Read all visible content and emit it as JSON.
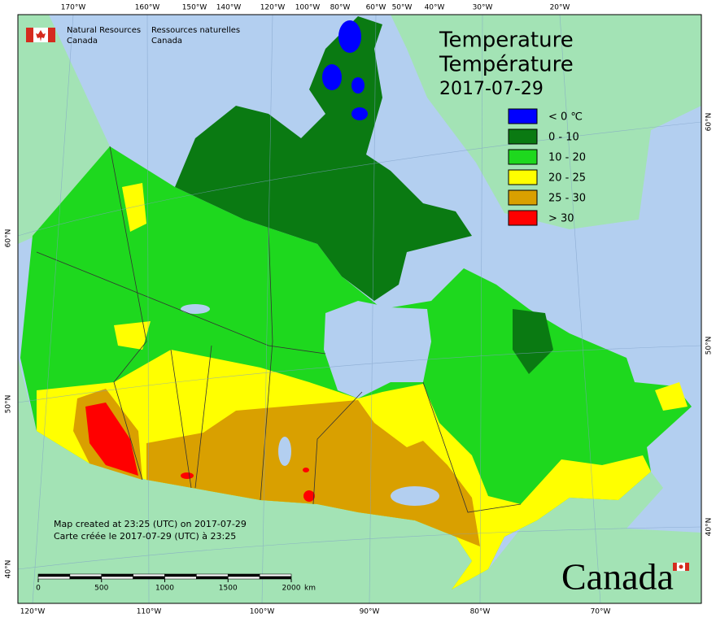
{
  "header": {
    "agency_en": [
      "Natural Resources",
      "Canada"
    ],
    "agency_fr": [
      "Ressources naturelles",
      "Canada"
    ]
  },
  "title": {
    "en": "Temperature",
    "fr": "Température",
    "date": "2017-07-29"
  },
  "legend": [
    {
      "label": "< 0 ℃",
      "color": "#0000ff"
    },
    {
      "label": "0 - 10",
      "color": "#0a7a12"
    },
    {
      "label": "10 - 20",
      "color": "#1ed81e"
    },
    {
      "label": "20 - 25",
      "color": "#ffff00"
    },
    {
      "label": "25 - 30",
      "color": "#d9a000"
    },
    {
      "label": "> 30",
      "color": "#ff0000"
    }
  ],
  "graticule": {
    "top": [
      "170°W",
      "160°W",
      "150°W",
      "140°W",
      "120°W",
      "100°W",
      "80°W",
      "60°W",
      "50°W",
      "40°W",
      "30°W",
      "20°W"
    ],
    "bottom": [
      "120°W",
      "110°W",
      "100°W",
      "90°W",
      "80°W",
      "70°W"
    ],
    "left": [
      "60°N",
      "50°N",
      "40°N"
    ],
    "right": [
      "60°N",
      "50°N",
      "40°N"
    ]
  },
  "notes": [
    "Map created at 23:25 (UTC) on 2017-07-29",
    "Carte créée le 2017-07-29 (UTC) à 23:25"
  ],
  "scale": {
    "ticks": [
      0,
      500,
      1000,
      1500,
      2000
    ],
    "unit": "km"
  },
  "wordmark": "Canada"
}
